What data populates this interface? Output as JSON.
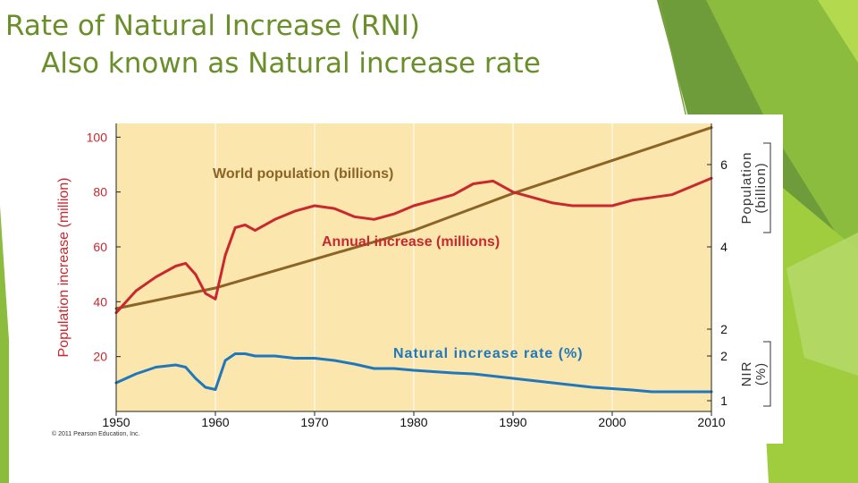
{
  "slide": {
    "title_line1": "Rate of Natural Increase (RNI)",
    "title_line2": "Also known as Natural increase rate",
    "copyright": "© 2011 Pearson Education, Inc."
  },
  "chart_data": {
    "type": "line",
    "x_ticks": [
      1950,
      1960,
      1970,
      1980,
      1990,
      2000,
      2010
    ],
    "xlim": [
      1950,
      2010
    ],
    "left_axis": {
      "label": "Population increase (million)",
      "ticks": [
        20,
        40,
        60,
        80,
        100
      ],
      "range": [
        0,
        105
      ]
    },
    "right_axes": [
      {
        "label_line1": "Population",
        "label_line2": "(billion)",
        "ticks": [
          2,
          4,
          6
        ],
        "range": [
          0,
          7
        ]
      },
      {
        "label_line1": "NIR",
        "label_line2": "(%)",
        "ticks": [
          1,
          2
        ],
        "range": [
          0.8,
          2.5
        ]
      }
    ],
    "series": [
      {
        "name": "World population (billions)",
        "axis": "population",
        "color": "#8b6426",
        "x": [
          1950,
          1960,
          1970,
          1980,
          1990,
          2000,
          2010
        ],
        "y": [
          2.5,
          3.0,
          3.7,
          4.4,
          5.3,
          6.1,
          6.9
        ]
      },
      {
        "name": "Annual increase (millions)",
        "axis": "left",
        "color": "#c8282e",
        "x": [
          1950,
          1952,
          1954,
          1956,
          1957,
          1958,
          1959,
          1960,
          1961,
          1962,
          1963,
          1964,
          1966,
          1968,
          1970,
          1972,
          1974,
          1976,
          1978,
          1980,
          1982,
          1984,
          1986,
          1988,
          1990,
          1992,
          1994,
          1996,
          1998,
          2000,
          2002,
          2004,
          2006,
          2008,
          2010
        ],
        "y": [
          36,
          44,
          49,
          53,
          54,
          50,
          43,
          41,
          57,
          67,
          68,
          66,
          70,
          73,
          75,
          74,
          71,
          70,
          72,
          75,
          77,
          79,
          83,
          84,
          80,
          78,
          76,
          75,
          75,
          75,
          77,
          78,
          79,
          82,
          85
        ]
      },
      {
        "name": "Natural increase rate (%)",
        "axis": "nir",
        "color": "#1f77bc",
        "x": [
          1950,
          1952,
          1954,
          1956,
          1957,
          1958,
          1959,
          1960,
          1961,
          1962,
          1963,
          1964,
          1966,
          1968,
          1970,
          1972,
          1974,
          1976,
          1978,
          1980,
          1982,
          1984,
          1986,
          1988,
          1990,
          1992,
          1994,
          1996,
          1998,
          2000,
          2002,
          2004,
          2006,
          2008,
          2010
        ],
        "y": [
          1.4,
          1.6,
          1.75,
          1.8,
          1.75,
          1.5,
          1.3,
          1.25,
          1.9,
          2.05,
          2.05,
          2.0,
          2.0,
          1.95,
          1.95,
          1.9,
          1.82,
          1.72,
          1.72,
          1.68,
          1.65,
          1.62,
          1.6,
          1.55,
          1.5,
          1.45,
          1.4,
          1.35,
          1.3,
          1.27,
          1.24,
          1.2,
          1.2,
          1.2,
          1.2
        ]
      }
    ]
  }
}
